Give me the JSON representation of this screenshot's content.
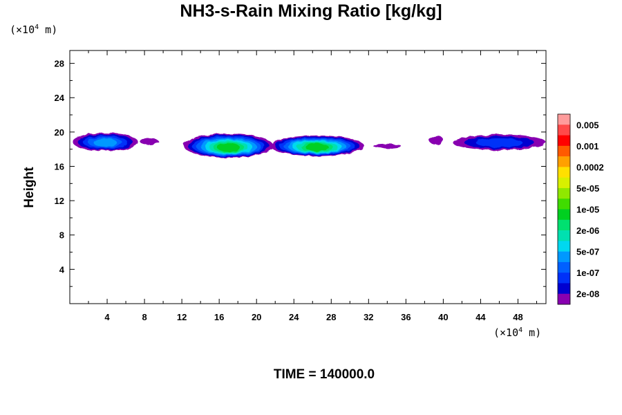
{
  "title": "NH3-s-Rain Mixing Ratio [kg/kg]",
  "y_unit": {
    "prefix": "(×10",
    "exp": "4",
    "suffix": " m)"
  },
  "x_unit": {
    "prefix": "(×10",
    "exp": "4",
    "suffix": " m)"
  },
  "footer": "TIME = 140000.0",
  "chart_data": {
    "type": "heatmap",
    "title": "NH3-s-Rain Mixing Ratio [kg/kg]",
    "xlabel": "",
    "ylabel": "Height",
    "x_unit": "×10^4 m",
    "y_unit": "×10^4 m",
    "xlim": [
      0,
      51
    ],
    "ylim": [
      0,
      29.5
    ],
    "x_ticks": [
      4,
      8,
      12,
      16,
      20,
      24,
      28,
      32,
      36,
      40,
      44,
      48
    ],
    "y_ticks": [
      4,
      8,
      12,
      16,
      20,
      24,
      28
    ],
    "colorbar": {
      "labels": [
        "0.005",
        "0.001",
        "0.0002",
        "5e-05",
        "1e-05",
        "2e-06",
        "5e-07",
        "1e-07",
        "2e-08"
      ],
      "colors": [
        "#ff9c9c",
        "#ff4a4a",
        "#ff0000",
        "#ff5a00",
        "#ffa000",
        "#ffe000",
        "#d8f000",
        "#90e800",
        "#40dc00",
        "#00d020",
        "#00e070",
        "#00e0b0",
        "#00d8f0",
        "#0098ff",
        "#0060ff",
        "#0030f8",
        "#0000d0",
        "#8800b0"
      ]
    },
    "features": [
      {
        "x": [
          0.3,
          7.3
        ],
        "y": [
          17.8,
          19.9
        ],
        "peak": "5e-07"
      },
      {
        "x": [
          7.5,
          9.5
        ],
        "y": [
          18.5,
          19.3
        ],
        "peak": "2e-08"
      },
      {
        "x": [
          12.2,
          21.8
        ],
        "y": [
          17.0,
          19.8
        ],
        "peak": "1e-05"
      },
      {
        "x": [
          21.5,
          31.5
        ],
        "y": [
          17.2,
          19.6
        ],
        "peak": "1e-05"
      },
      {
        "x": [
          32.5,
          35.5
        ],
        "y": [
          18.1,
          18.6
        ],
        "peak": "2e-08"
      },
      {
        "x": [
          38.5,
          40.0
        ],
        "y": [
          18.5,
          19.6
        ],
        "peak": "2e-08"
      },
      {
        "x": [
          41.0,
          51.0
        ],
        "y": [
          17.9,
          19.7
        ],
        "peak": "1e-07"
      }
    ]
  }
}
